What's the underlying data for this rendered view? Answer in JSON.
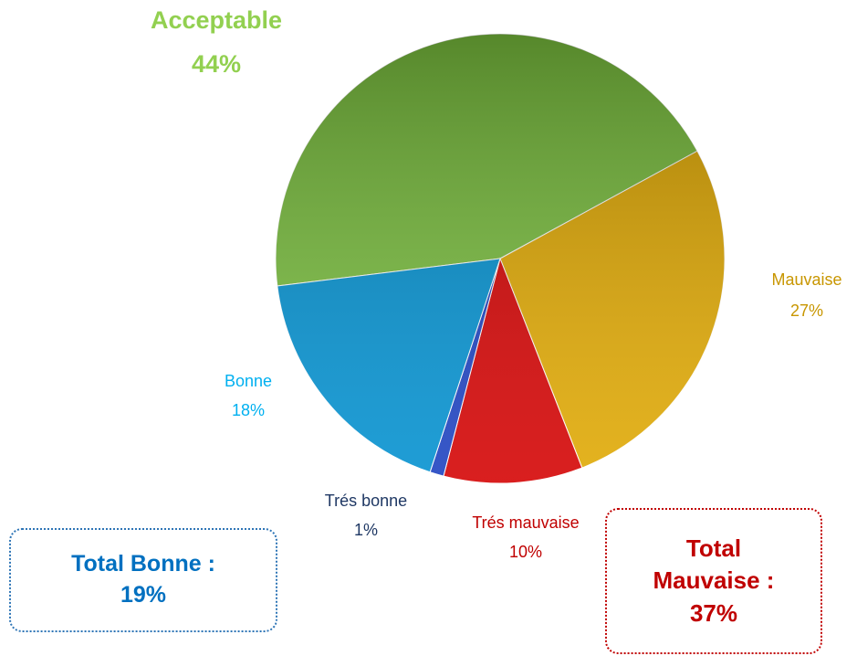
{
  "chart_data": {
    "type": "pie",
    "categories": [
      "Acceptable",
      "Mauvaise",
      "Trés mauvaise",
      "Trés bonne",
      "Bonne"
    ],
    "values": [
      44,
      27,
      10,
      1,
      18
    ],
    "value_labels": [
      "44%",
      "27%",
      "10%",
      "1%",
      "18%"
    ],
    "colors": [
      "#78bd3c",
      "#e0a800",
      "#d40000",
      "#1a3fc0",
      "#0090d0"
    ],
    "annotations": [
      {
        "text": "Total Bonne :",
        "label": "19%"
      },
      {
        "text": "Total Mauvaise :",
        "label": "37%"
      }
    ]
  }
}
